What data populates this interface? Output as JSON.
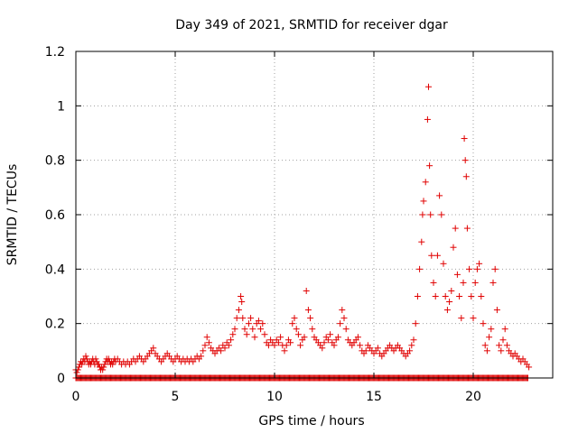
{
  "chart_data": {
    "type": "scatter",
    "title": "Day 349 of 2021, SRMTID for receiver dgar",
    "xlabel": "GPS time / hours",
    "ylabel": "SRMTID / TECUs",
    "xlim": [
      0,
      24
    ],
    "ylim": [
      0,
      1.2
    ],
    "xticks": [
      0,
      5,
      10,
      15,
      20
    ],
    "xtick_labels": [
      "0",
      "5",
      "10",
      "15",
      "20"
    ],
    "yticks": [
      0,
      0.2,
      0.4,
      0.6,
      0.8,
      1.0,
      1.2
    ],
    "ytick_labels": [
      "0",
      "0.2",
      "0.4",
      "0.6",
      "0.8",
      "1",
      "1.2"
    ],
    "grid": true,
    "marker": "+",
    "marker_color": "#e00000",
    "series": [
      {
        "name": "SRMTID",
        "points": [
          [
            0.0,
            0.03
          ],
          [
            0.05,
            0.02
          ],
          [
            0.1,
            0.03
          ],
          [
            0.15,
            0.04
          ],
          [
            0.2,
            0.05
          ],
          [
            0.25,
            0.06
          ],
          [
            0.3,
            0.05
          ],
          [
            0.35,
            0.06
          ],
          [
            0.4,
            0.07
          ],
          [
            0.45,
            0.06
          ],
          [
            0.5,
            0.08
          ],
          [
            0.55,
            0.07
          ],
          [
            0.6,
            0.06
          ],
          [
            0.65,
            0.05
          ],
          [
            0.7,
            0.06
          ],
          [
            0.75,
            0.05
          ],
          [
            0.8,
            0.06
          ],
          [
            0.85,
            0.07
          ],
          [
            0.9,
            0.06
          ],
          [
            0.95,
            0.05
          ],
          [
            1.0,
            0.07
          ],
          [
            1.05,
            0.06
          ],
          [
            1.1,
            0.05
          ],
          [
            1.15,
            0.05
          ],
          [
            1.2,
            0.04
          ],
          [
            1.25,
            0.03
          ],
          [
            1.3,
            0.04
          ],
          [
            1.35,
            0.03
          ],
          [
            1.4,
            0.04
          ],
          [
            1.45,
            0.05
          ],
          [
            1.5,
            0.06
          ],
          [
            1.55,
            0.07
          ],
          [
            1.6,
            0.06
          ],
          [
            1.65,
            0.07
          ],
          [
            1.7,
            0.06
          ],
          [
            1.75,
            0.05
          ],
          [
            1.8,
            0.06
          ],
          [
            1.85,
            0.05
          ],
          [
            1.9,
            0.06
          ],
          [
            1.95,
            0.07
          ],
          [
            2.0,
            0.06
          ],
          [
            2.1,
            0.07
          ],
          [
            2.2,
            0.06
          ],
          [
            2.3,
            0.05
          ],
          [
            2.4,
            0.06
          ],
          [
            2.5,
            0.05
          ],
          [
            2.6,
            0.06
          ],
          [
            2.7,
            0.05
          ],
          [
            2.8,
            0.06
          ],
          [
            2.9,
            0.07
          ],
          [
            3.0,
            0.06
          ],
          [
            3.1,
            0.07
          ],
          [
            3.2,
            0.08
          ],
          [
            3.3,
            0.07
          ],
          [
            3.4,
            0.06
          ],
          [
            3.5,
            0.07
          ],
          [
            3.6,
            0.08
          ],
          [
            3.7,
            0.09
          ],
          [
            3.8,
            0.1
          ],
          [
            3.9,
            0.11
          ],
          [
            4.0,
            0.09
          ],
          [
            4.1,
            0.08
          ],
          [
            4.2,
            0.07
          ],
          [
            4.3,
            0.06
          ],
          [
            4.4,
            0.07
          ],
          [
            4.5,
            0.08
          ],
          [
            4.6,
            0.09
          ],
          [
            4.7,
            0.08
          ],
          [
            4.8,
            0.07
          ],
          [
            4.9,
            0.06
          ],
          [
            5.0,
            0.07
          ],
          [
            5.1,
            0.08
          ],
          [
            5.2,
            0.07
          ],
          [
            5.3,
            0.06
          ],
          [
            5.4,
            0.07
          ],
          [
            5.5,
            0.06
          ],
          [
            5.6,
            0.07
          ],
          [
            5.7,
            0.06
          ],
          [
            5.8,
            0.07
          ],
          [
            5.9,
            0.06
          ],
          [
            6.0,
            0.07
          ],
          [
            6.1,
            0.08
          ],
          [
            6.2,
            0.07
          ],
          [
            6.3,
            0.08
          ],
          [
            6.4,
            0.1
          ],
          [
            6.5,
            0.12
          ],
          [
            6.6,
            0.15
          ],
          [
            6.7,
            0.13
          ],
          [
            6.8,
            0.11
          ],
          [
            6.9,
            0.1
          ],
          [
            7.0,
            0.09
          ],
          [
            7.1,
            0.1
          ],
          [
            7.2,
            0.11
          ],
          [
            7.3,
            0.1
          ],
          [
            7.4,
            0.12
          ],
          [
            7.5,
            0.11
          ],
          [
            7.6,
            0.13
          ],
          [
            7.7,
            0.12
          ],
          [
            7.8,
            0.14
          ],
          [
            7.9,
            0.16
          ],
          [
            8.0,
            0.18
          ],
          [
            8.1,
            0.22
          ],
          [
            8.2,
            0.25
          ],
          [
            8.3,
            0.3
          ],
          [
            8.35,
            0.28
          ],
          [
            8.4,
            0.22
          ],
          [
            8.5,
            0.18
          ],
          [
            8.6,
            0.16
          ],
          [
            8.7,
            0.2
          ],
          [
            8.8,
            0.22
          ],
          [
            8.9,
            0.18
          ],
          [
            9.0,
            0.15
          ],
          [
            9.1,
            0.2
          ],
          [
            9.2,
            0.21
          ],
          [
            9.3,
            0.18
          ],
          [
            9.4,
            0.2
          ],
          [
            9.5,
            0.16
          ],
          [
            9.6,
            0.13
          ],
          [
            9.7,
            0.12
          ],
          [
            9.8,
            0.14
          ],
          [
            9.9,
            0.13
          ],
          [
            10.0,
            0.12
          ],
          [
            10.1,
            0.14
          ],
          [
            10.2,
            0.13
          ],
          [
            10.3,
            0.15
          ],
          [
            10.4,
            0.12
          ],
          [
            10.5,
            0.1
          ],
          [
            10.6,
            0.12
          ],
          [
            10.7,
            0.14
          ],
          [
            10.8,
            0.13
          ],
          [
            10.9,
            0.2
          ],
          [
            11.0,
            0.22
          ],
          [
            11.1,
            0.18
          ],
          [
            11.2,
            0.16
          ],
          [
            11.3,
            0.12
          ],
          [
            11.4,
            0.14
          ],
          [
            11.5,
            0.15
          ],
          [
            11.6,
            0.32
          ],
          [
            11.7,
            0.25
          ],
          [
            11.8,
            0.22
          ],
          [
            11.9,
            0.18
          ],
          [
            12.0,
            0.15
          ],
          [
            12.1,
            0.14
          ],
          [
            12.2,
            0.13
          ],
          [
            12.3,
            0.12
          ],
          [
            12.4,
            0.11
          ],
          [
            12.5,
            0.13
          ],
          [
            12.6,
            0.15
          ],
          [
            12.7,
            0.14
          ],
          [
            12.8,
            0.16
          ],
          [
            12.9,
            0.13
          ],
          [
            13.0,
            0.12
          ],
          [
            13.1,
            0.14
          ],
          [
            13.2,
            0.15
          ],
          [
            13.3,
            0.2
          ],
          [
            13.4,
            0.25
          ],
          [
            13.5,
            0.22
          ],
          [
            13.6,
            0.18
          ],
          [
            13.7,
            0.14
          ],
          [
            13.8,
            0.13
          ],
          [
            13.9,
            0.12
          ],
          [
            14.0,
            0.13
          ],
          [
            14.1,
            0.14
          ],
          [
            14.2,
            0.15
          ],
          [
            14.3,
            0.12
          ],
          [
            14.4,
            0.1
          ],
          [
            14.5,
            0.09
          ],
          [
            14.6,
            0.1
          ],
          [
            14.7,
            0.12
          ],
          [
            14.8,
            0.11
          ],
          [
            14.9,
            0.1
          ],
          [
            15.0,
            0.09
          ],
          [
            15.1,
            0.1
          ],
          [
            15.2,
            0.11
          ],
          [
            15.3,
            0.09
          ],
          [
            15.4,
            0.08
          ],
          [
            15.5,
            0.09
          ],
          [
            15.6,
            0.1
          ],
          [
            15.7,
            0.11
          ],
          [
            15.8,
            0.12
          ],
          [
            15.9,
            0.11
          ],
          [
            16.0,
            0.1
          ],
          [
            16.1,
            0.11
          ],
          [
            16.2,
            0.12
          ],
          [
            16.3,
            0.11
          ],
          [
            16.4,
            0.1
          ],
          [
            16.5,
            0.09
          ],
          [
            16.6,
            0.08
          ],
          [
            16.7,
            0.09
          ],
          [
            16.8,
            0.1
          ],
          [
            16.9,
            0.12
          ],
          [
            17.0,
            0.14
          ],
          [
            17.1,
            0.2
          ],
          [
            17.2,
            0.3
          ],
          [
            17.3,
            0.4
          ],
          [
            17.4,
            0.5
          ],
          [
            17.45,
            0.6
          ],
          [
            17.5,
            0.65
          ],
          [
            17.6,
            0.72
          ],
          [
            17.7,
            0.95
          ],
          [
            17.75,
            1.07
          ],
          [
            17.8,
            0.78
          ],
          [
            17.85,
            0.6
          ],
          [
            17.9,
            0.45
          ],
          [
            18.0,
            0.35
          ],
          [
            18.1,
            0.3
          ],
          [
            18.2,
            0.45
          ],
          [
            18.3,
            0.67
          ],
          [
            18.4,
            0.6
          ],
          [
            18.5,
            0.42
          ],
          [
            18.6,
            0.3
          ],
          [
            18.7,
            0.25
          ],
          [
            18.8,
            0.28
          ],
          [
            18.9,
            0.32
          ],
          [
            19.0,
            0.48
          ],
          [
            19.1,
            0.55
          ],
          [
            19.2,
            0.38
          ],
          [
            19.3,
            0.3
          ],
          [
            19.4,
            0.22
          ],
          [
            19.5,
            0.35
          ],
          [
            19.55,
            0.88
          ],
          [
            19.6,
            0.8
          ],
          [
            19.65,
            0.74
          ],
          [
            19.7,
            0.55
          ],
          [
            19.8,
            0.4
          ],
          [
            19.9,
            0.3
          ],
          [
            20.0,
            0.22
          ],
          [
            20.1,
            0.35
          ],
          [
            20.2,
            0.4
          ],
          [
            20.3,
            0.42
          ],
          [
            20.4,
            0.3
          ],
          [
            20.5,
            0.2
          ],
          [
            20.6,
            0.12
          ],
          [
            20.7,
            0.1
          ],
          [
            20.8,
            0.15
          ],
          [
            20.9,
            0.18
          ],
          [
            21.0,
            0.35
          ],
          [
            21.1,
            0.4
          ],
          [
            21.2,
            0.25
          ],
          [
            21.3,
            0.12
          ],
          [
            21.4,
            0.1
          ],
          [
            21.5,
            0.14
          ],
          [
            21.6,
            0.18
          ],
          [
            21.7,
            0.12
          ],
          [
            21.8,
            0.1
          ],
          [
            21.9,
            0.09
          ],
          [
            22.0,
            0.08
          ],
          [
            22.1,
            0.09
          ],
          [
            22.2,
            0.08
          ],
          [
            22.3,
            0.07
          ],
          [
            22.4,
            0.06
          ],
          [
            22.5,
            0.07
          ],
          [
            22.6,
            0.06
          ],
          [
            22.7,
            0.05
          ],
          [
            22.8,
            0.04
          ]
        ]
      }
    ],
    "baseline_points_y": 0,
    "baseline_x_range": [
      0,
      22.8
    ]
  }
}
